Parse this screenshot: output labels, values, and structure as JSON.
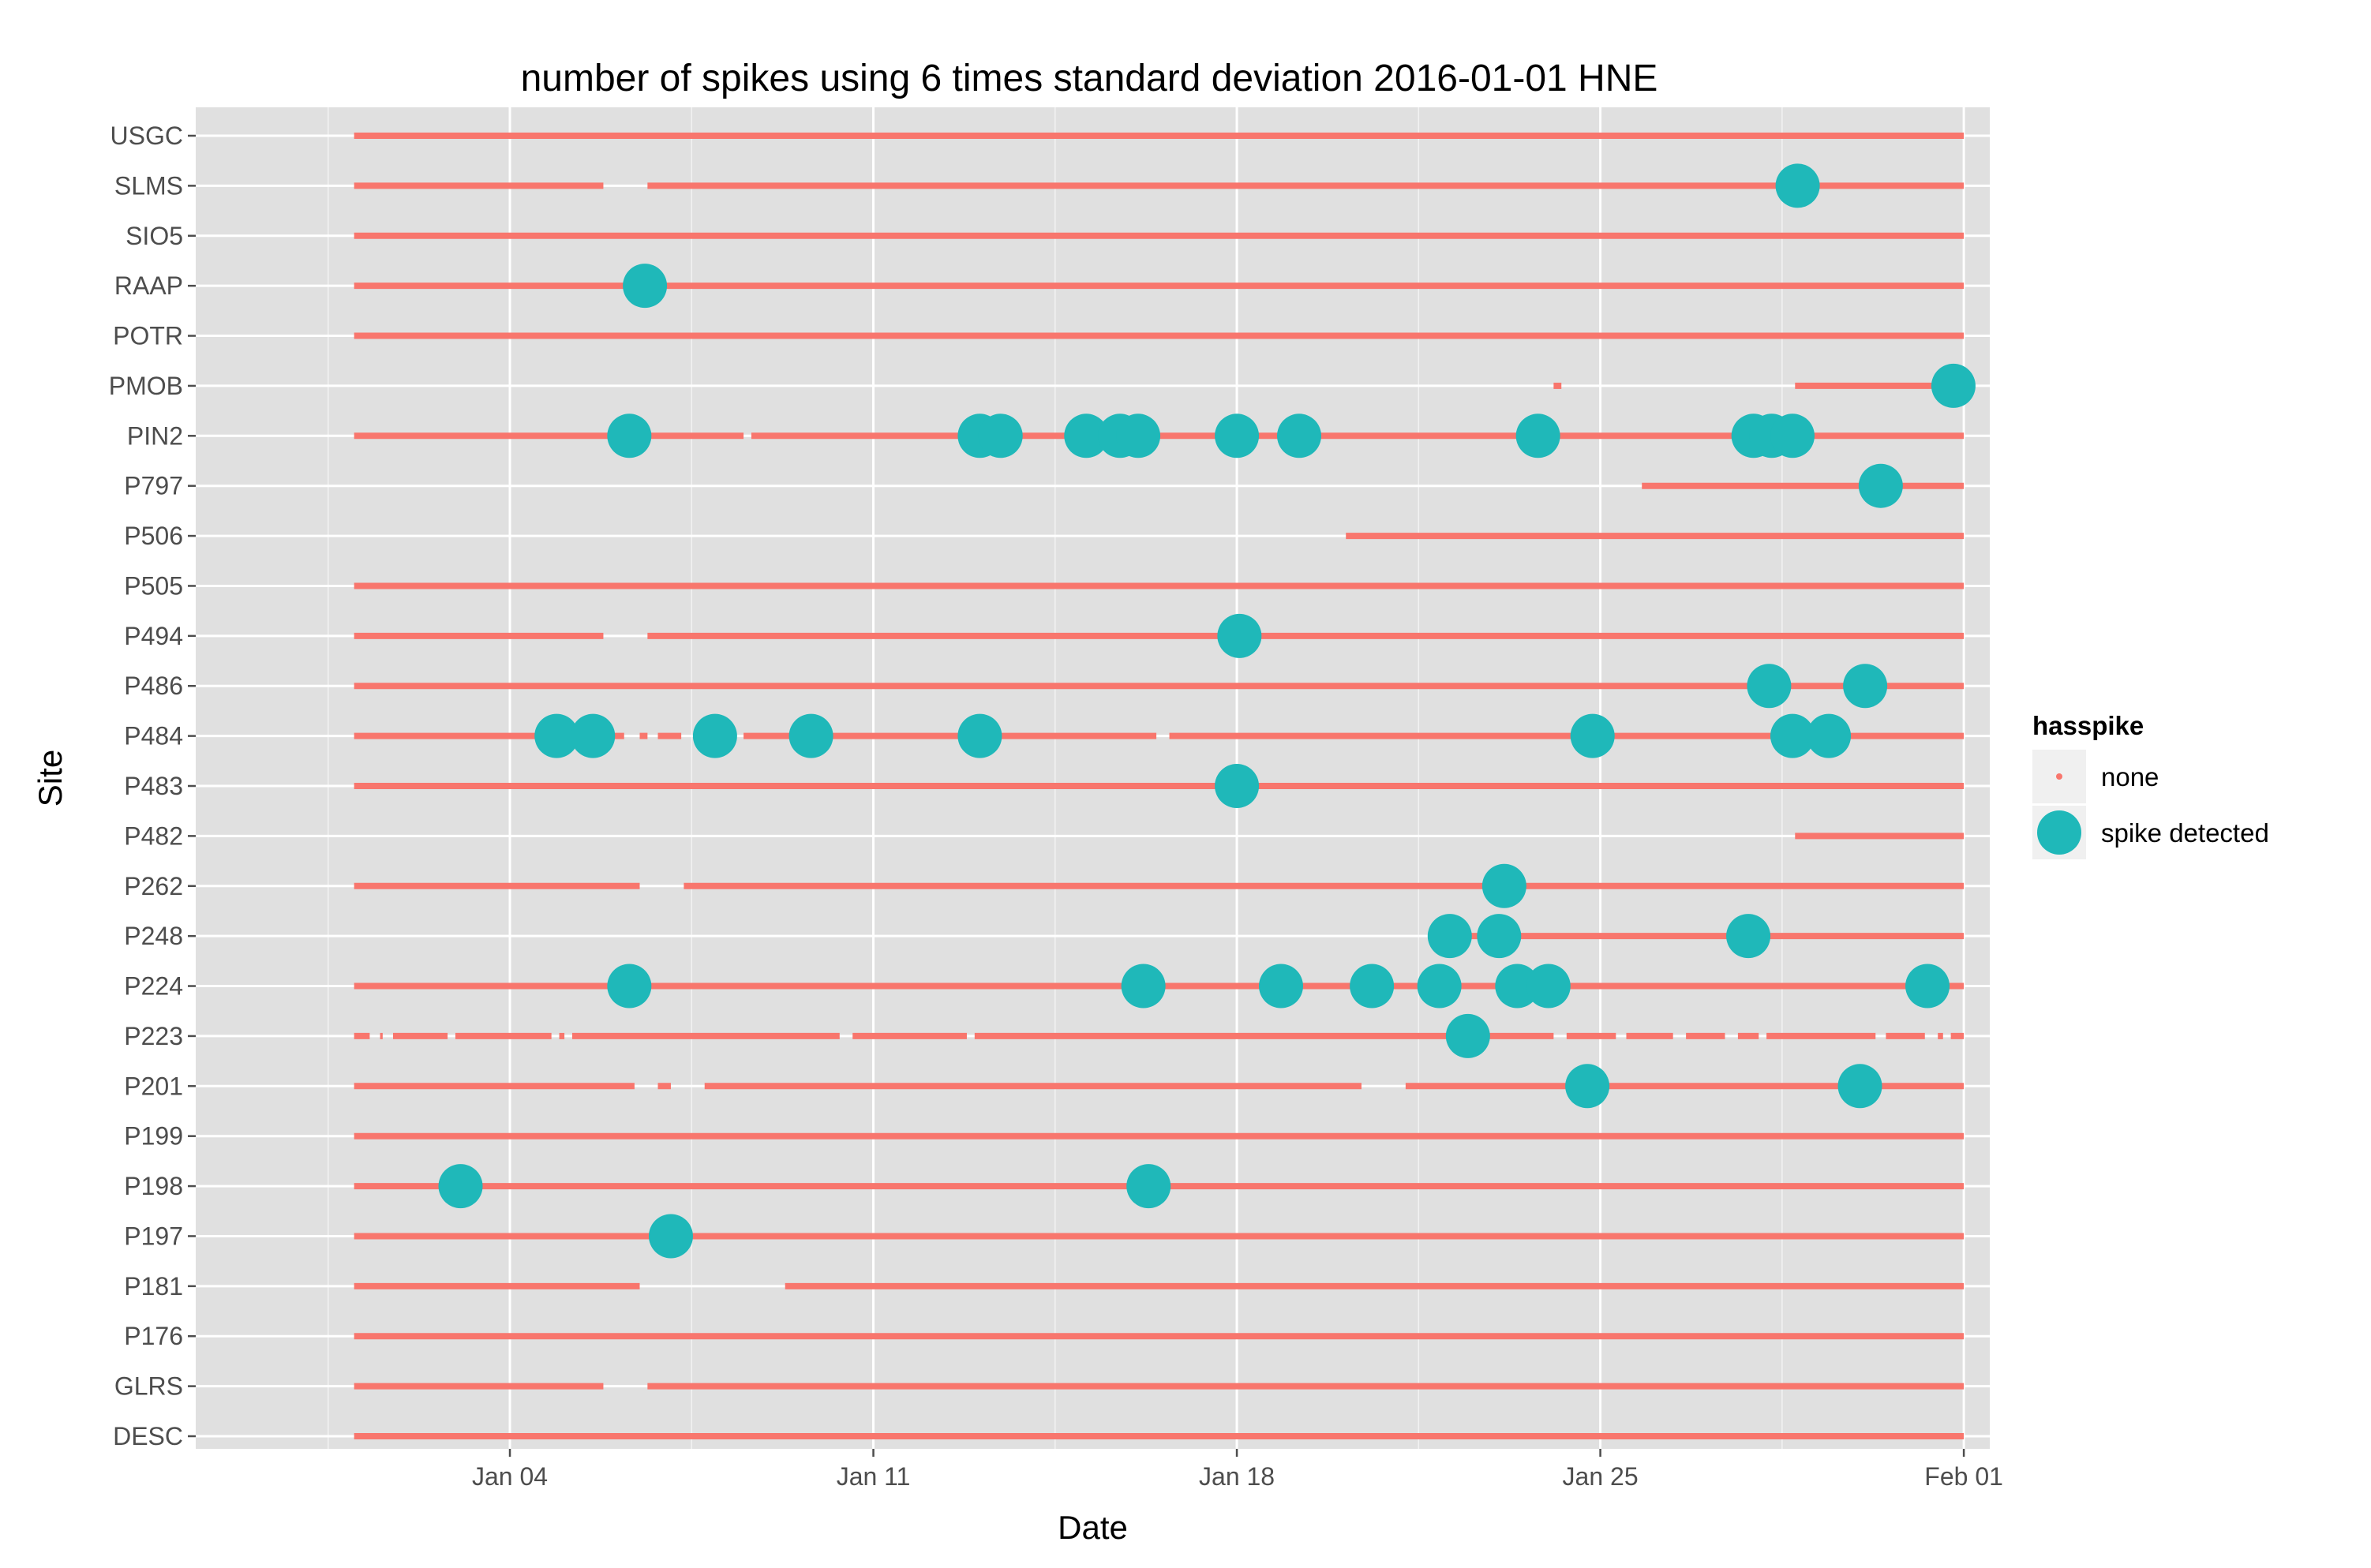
{
  "chart_data": {
    "type": "scatter",
    "title": "number of spikes using  6 times standard deviation 2016-01-01 HNE",
    "xlabel": "Date",
    "ylabel": "Site",
    "x_unit": "day of January 2016",
    "xlim": [
      -2.05,
      32.5
    ],
    "x_ticks": [
      {
        "value": 4,
        "label": "Jan 04"
      },
      {
        "value": 11,
        "label": "Jan 11"
      },
      {
        "value": 18,
        "label": "Jan 18"
      },
      {
        "value": 25,
        "label": "Jan 25"
      },
      {
        "value": 32,
        "label": "Feb 01"
      }
    ],
    "x_minor_ticks": [
      0.5,
      7.5,
      14.5,
      21.5,
      28.5
    ],
    "grid": true,
    "legend": {
      "title": "hasspike",
      "position": "right",
      "entries": [
        {
          "label": "none",
          "color": "#f8766d"
        },
        {
          "label": "spike detected",
          "color": "#1fb8b9"
        }
      ]
    },
    "colors": {
      "none": "#f8766d",
      "spike": "#1fb8b9",
      "panel": "#e0e0e0",
      "grid": "#ffffff"
    },
    "sites": [
      {
        "name": "USGC",
        "segments": [
          [
            1,
            32
          ]
        ],
        "spikes": []
      },
      {
        "name": "SLMS",
        "segments": [
          [
            1,
            5.8
          ],
          [
            6.65,
            32
          ]
        ],
        "spikes": [
          28.8
        ]
      },
      {
        "name": "SIO5",
        "segments": [
          [
            1,
            32
          ]
        ],
        "spikes": []
      },
      {
        "name": "RAAP",
        "segments": [
          [
            1,
            32
          ]
        ],
        "spikes": [
          6.6
        ]
      },
      {
        "name": "POTR",
        "segments": [
          [
            1,
            32
          ]
        ],
        "spikes": []
      },
      {
        "name": "PMOB",
        "segments": [
          [
            24.1,
            24.25
          ],
          [
            28.75,
            32
          ]
        ],
        "spikes": [
          31.8
        ]
      },
      {
        "name": "PIN2",
        "segments": [
          [
            1,
            8.5
          ],
          [
            8.65,
            32
          ]
        ],
        "spikes": [
          6.3,
          13.05,
          13.45,
          15.1,
          15.75,
          16.1,
          18,
          19.2,
          23.8,
          27.95,
          28.3,
          28.7
        ]
      },
      {
        "name": "P797",
        "segments": [
          [
            25.8,
            32
          ]
        ],
        "spikes": [
          30.4
        ]
      },
      {
        "name": "P506",
        "segments": [
          [
            20.1,
            32
          ]
        ],
        "spikes": []
      },
      {
        "name": "P505",
        "segments": [
          [
            1,
            32
          ]
        ],
        "spikes": []
      },
      {
        "name": "P494",
        "segments": [
          [
            1,
            5.8
          ],
          [
            6.65,
            32
          ]
        ],
        "spikes": [
          18.05
        ]
      },
      {
        "name": "P486",
        "segments": [
          [
            1,
            32
          ]
        ],
        "spikes": [
          28.25,
          30.1
        ]
      },
      {
        "name": "P484",
        "segments": [
          [
            1,
            6.2
          ],
          [
            6.5,
            6.65
          ],
          [
            6.85,
            7.3
          ],
          [
            7.75,
            8.1
          ],
          [
            8.5,
            16.45
          ],
          [
            16.7,
            32
          ]
        ],
        "spikes": [
          4.9,
          5.6,
          7.95,
          9.8,
          13.05,
          24.85,
          28.7,
          29.4
        ]
      },
      {
        "name": "P483",
        "segments": [
          [
            1,
            32
          ]
        ],
        "spikes": [
          18
        ]
      },
      {
        "name": "P482",
        "segments": [
          [
            28.75,
            32
          ]
        ],
        "spikes": []
      },
      {
        "name": "P262",
        "segments": [
          [
            1,
            6.5
          ],
          [
            7.35,
            32
          ]
        ],
        "spikes": [
          23.15
        ]
      },
      {
        "name": "P248",
        "segments": [
          [
            22.05,
            32
          ]
        ],
        "spikes": [
          22.1,
          23.05,
          27.85
        ]
      },
      {
        "name": "P224",
        "segments": [
          [
            1,
            32
          ]
        ],
        "spikes": [
          6.3,
          16.2,
          18.85,
          20.6,
          21.9,
          23.4,
          24,
          31.3
        ]
      },
      {
        "name": "P223",
        "segments": [
          [
            1,
            1.3
          ],
          [
            1.5,
            1.55
          ],
          [
            1.75,
            2.8
          ],
          [
            2.95,
            4.8
          ],
          [
            4.95,
            5.05
          ],
          [
            5.2,
            10.35
          ],
          [
            10.6,
            12.8
          ],
          [
            12.95,
            22.35
          ],
          [
            22.7,
            24.1
          ],
          [
            24.35,
            25.3
          ],
          [
            25.5,
            26.4
          ],
          [
            26.65,
            27.4
          ],
          [
            27.65,
            28.05
          ],
          [
            28.2,
            30.3
          ],
          [
            30.5,
            31.25
          ],
          [
            31.5,
            31.6
          ],
          [
            31.75,
            32
          ]
        ],
        "spikes": [
          22.45
        ]
      },
      {
        "name": "P201",
        "segments": [
          [
            1,
            6.4
          ],
          [
            6.85,
            7.1
          ],
          [
            7.75,
            20.4
          ],
          [
            21.25,
            32
          ]
        ],
        "spikes": [
          24.75,
          30.0
        ]
      },
      {
        "name": "P199",
        "segments": [
          [
            1,
            32
          ]
        ],
        "spikes": []
      },
      {
        "name": "P198",
        "segments": [
          [
            1,
            32
          ]
        ],
        "spikes": [
          3.05,
          16.3
        ]
      },
      {
        "name": "P197",
        "segments": [
          [
            1,
            32
          ]
        ],
        "spikes": [
          7.1
        ]
      },
      {
        "name": "P181",
        "segments": [
          [
            1,
            6.5
          ],
          [
            9.3,
            32
          ]
        ],
        "spikes": []
      },
      {
        "name": "P176",
        "segments": [
          [
            1,
            32
          ]
        ],
        "spikes": []
      },
      {
        "name": "GLRS",
        "segments": [
          [
            1,
            5.8
          ],
          [
            6.65,
            32
          ]
        ],
        "spikes": []
      },
      {
        "name": "DESC",
        "segments": [
          [
            1,
            32
          ]
        ],
        "spikes": []
      }
    ]
  }
}
